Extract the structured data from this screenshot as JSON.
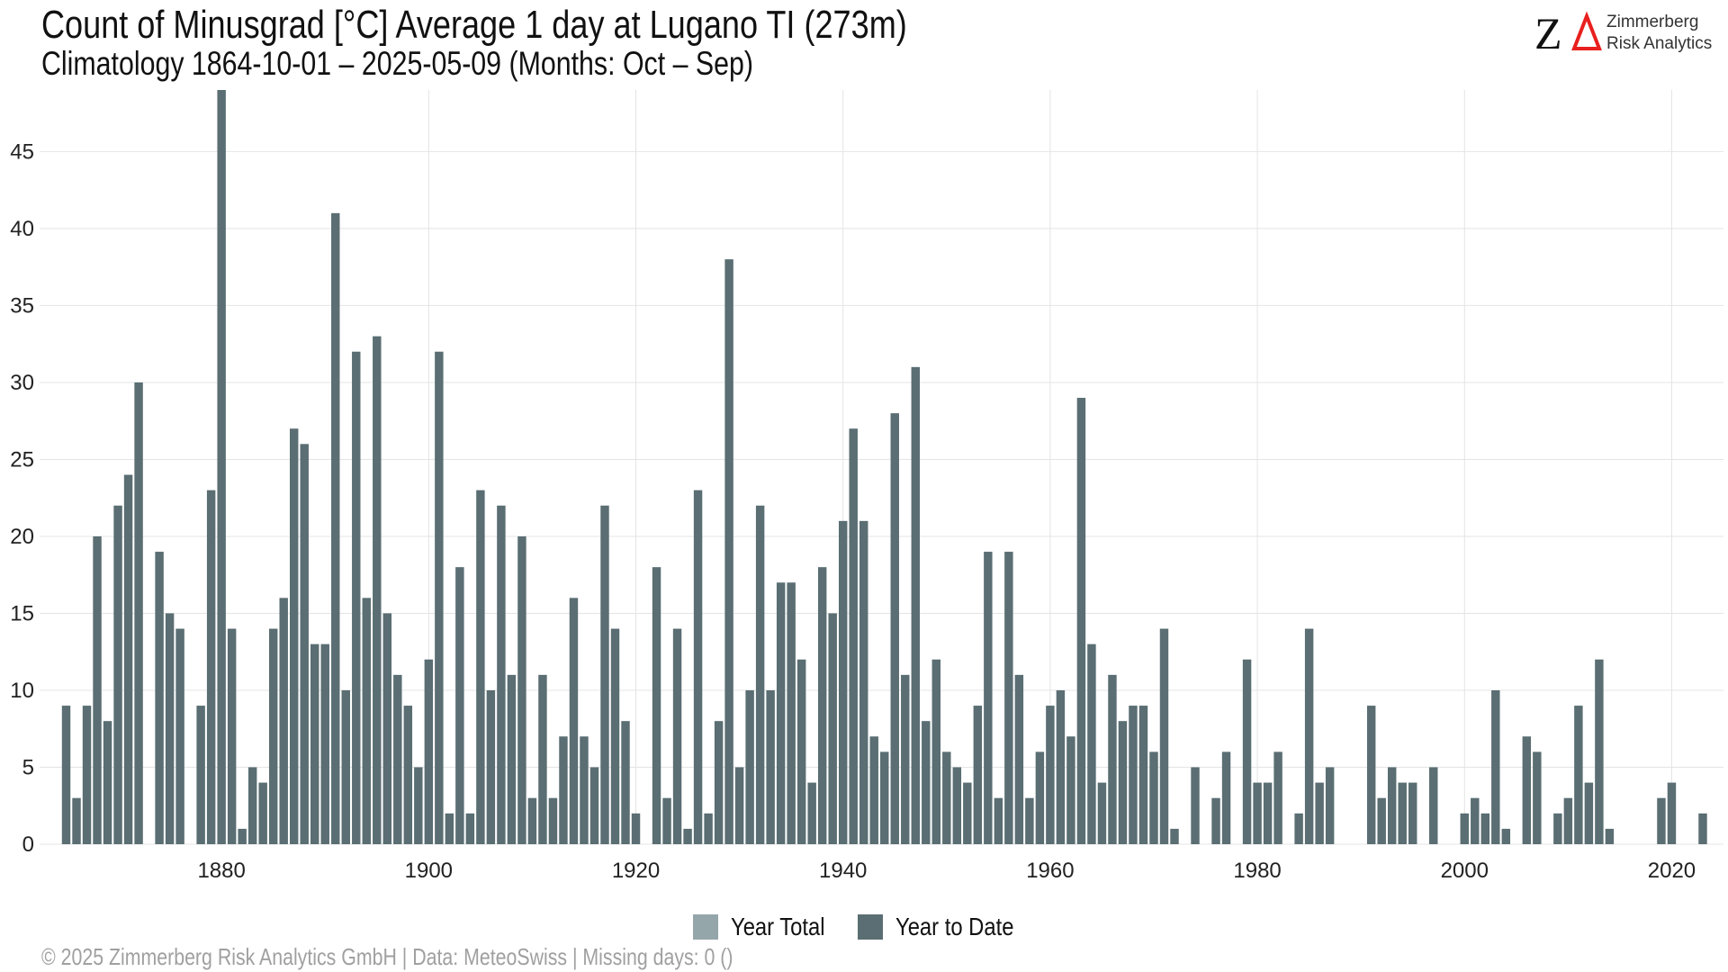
{
  "header": {
    "title": "Count of Minusgrad [°C] Average 1 day at Lugano  TI (273m)",
    "subtitle": "Climatology 1864-10-01 – 2025-05-09 (Months: Oct – Sep)"
  },
  "logo": {
    "mark": "ZΔ",
    "line1": "Zimmerberg",
    "line2": "Risk Analytics",
    "mark_color": "#111111",
    "accent_color": "#e8201e"
  },
  "legend": {
    "items": [
      {
        "label": "Year Total",
        "color": "#95a6ab"
      },
      {
        "label": "Year to Date",
        "color": "#5a6e73"
      }
    ]
  },
  "footer": "©  2025 Zimmerberg Risk Analytics GmbH | Data: MeteoSwiss | Missing days: 0 ()",
  "colors": {
    "bar": "#5a6e73",
    "grid": "#e4e4e4"
  },
  "chart_data": {
    "type": "bar",
    "title": "Count of Minusgrad [°C] Average 1 day at Lugano  TI (273m)",
    "subtitle": "Climatology 1864-10-01 – 2025-05-09 (Months: Oct – Sep)",
    "xlabel": "",
    "ylabel": "",
    "xlim": [
      1864,
      2025
    ],
    "ylim": [
      0,
      49
    ],
    "x_ticks": [
      1880,
      1900,
      1920,
      1940,
      1960,
      1980,
      2000,
      2020
    ],
    "y_ticks": [
      0,
      5,
      10,
      15,
      20,
      25,
      30,
      35,
      40,
      45
    ],
    "grid": true,
    "legend_position": "bottom",
    "series": [
      {
        "name": "Year to Date",
        "color": "#5a6e73",
        "x": [
          1865,
          1866,
          1867,
          1868,
          1869,
          1870,
          1871,
          1872,
          1873,
          1874,
          1875,
          1876,
          1877,
          1878,
          1879,
          1880,
          1881,
          1882,
          1883,
          1884,
          1885,
          1886,
          1887,
          1888,
          1889,
          1890,
          1891,
          1892,
          1893,
          1894,
          1895,
          1896,
          1897,
          1898,
          1899,
          1900,
          1901,
          1902,
          1903,
          1904,
          1905,
          1906,
          1907,
          1908,
          1909,
          1910,
          1911,
          1912,
          1913,
          1914,
          1915,
          1916,
          1917,
          1918,
          1919,
          1920,
          1921,
          1922,
          1923,
          1924,
          1925,
          1926,
          1927,
          1928,
          1929,
          1930,
          1931,
          1932,
          1933,
          1934,
          1935,
          1936,
          1937,
          1938,
          1939,
          1940,
          1941,
          1942,
          1943,
          1944,
          1945,
          1946,
          1947,
          1948,
          1949,
          1950,
          1951,
          1952,
          1953,
          1954,
          1955,
          1956,
          1957,
          1958,
          1959,
          1960,
          1961,
          1962,
          1963,
          1964,
          1965,
          1966,
          1967,
          1968,
          1969,
          1970,
          1971,
          1972,
          1973,
          1974,
          1975,
          1976,
          1977,
          1978,
          1979,
          1980,
          1981,
          1982,
          1983,
          1984,
          1985,
          1986,
          1987,
          1988,
          1989,
          1990,
          1991,
          1992,
          1993,
          1994,
          1995,
          1996,
          1997,
          1998,
          1999,
          2000,
          2001,
          2002,
          2003,
          2004,
          2005,
          2006,
          2007,
          2008,
          2009,
          2010,
          2011,
          2012,
          2013,
          2014,
          2015,
          2016,
          2017,
          2018,
          2019,
          2020,
          2021,
          2022,
          2023,
          2024,
          2025
        ],
        "values": [
          9,
          3,
          9,
          20,
          8,
          22,
          24,
          30,
          0,
          19,
          15,
          14,
          0,
          9,
          23,
          49,
          14,
          1,
          5,
          4,
          14,
          16,
          27,
          26,
          13,
          13,
          41,
          10,
          32,
          16,
          33,
          15,
          11,
          9,
          5,
          12,
          32,
          2,
          18,
          2,
          23,
          10,
          22,
          11,
          20,
          3,
          11,
          3,
          7,
          16,
          7,
          5,
          22,
          14,
          8,
          2,
          0,
          18,
          3,
          14,
          1,
          23,
          2,
          8,
          38,
          5,
          10,
          22,
          10,
          17,
          17,
          12,
          4,
          18,
          15,
          21,
          27,
          21,
          7,
          6,
          28,
          11,
          31,
          8,
          12,
          6,
          5,
          4,
          9,
          19,
          3,
          19,
          11,
          3,
          6,
          9,
          10,
          7,
          29,
          13,
          4,
          11,
          8,
          9,
          9,
          6,
          14,
          1,
          0,
          5,
          0,
          3,
          6,
          0,
          12,
          4,
          4,
          6,
          0,
          2,
          14,
          4,
          5,
          0,
          0,
          0,
          9,
          3,
          5,
          4,
          4,
          0,
          5,
          0,
          0,
          2,
          3,
          2,
          10,
          1,
          0,
          7,
          6,
          0,
          2,
          3,
          9,
          4,
          12,
          1,
          0,
          0,
          0,
          0,
          3,
          4,
          0,
          0,
          2,
          0,
          0
        ]
      }
    ]
  }
}
